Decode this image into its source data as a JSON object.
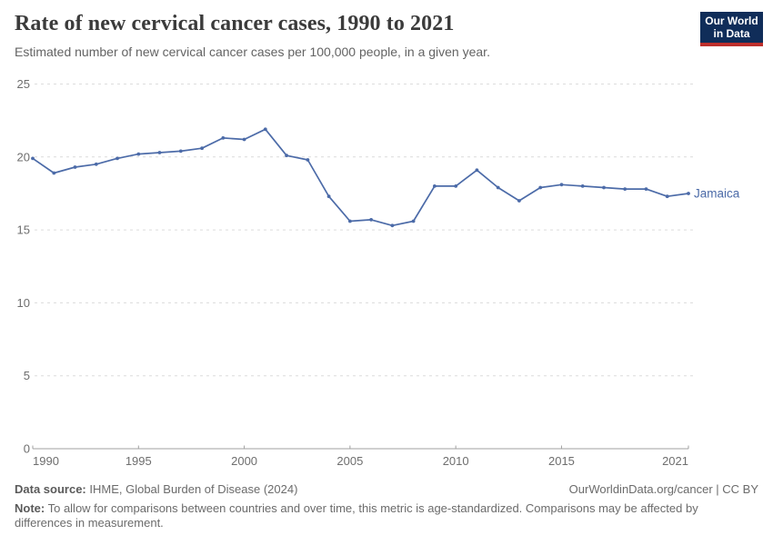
{
  "header": {
    "title": "Rate of new cervical cancer cases, 1990 to 2021",
    "subtitle": "Estimated number of new cervical cancer cases per 100,000 people, in a given year."
  },
  "logo": {
    "line1": "Our World",
    "line2": "in Data",
    "bg_color": "#102d59",
    "stripe_color": "#be2f2c"
  },
  "chart_data": {
    "type": "line",
    "title": "Rate of new cervical cancer cases, 1990 to 2021",
    "xlabel": "",
    "ylabel": "",
    "xlim": [
      1990,
      2021
    ],
    "ylim": [
      0,
      25
    ],
    "xticks": [
      1990,
      1995,
      2000,
      2005,
      2010,
      2015,
      2021
    ],
    "yticks": [
      0,
      5,
      10,
      15,
      20,
      25
    ],
    "grid": "horizontal dashed",
    "legend_position": "end-of-line label",
    "series": [
      {
        "name": "Jamaica",
        "color": "#4c6ba8",
        "x": [
          1990,
          1991,
          1992,
          1993,
          1994,
          1995,
          1996,
          1997,
          1998,
          1999,
          2000,
          2001,
          2002,
          2003,
          2004,
          2005,
          2006,
          2007,
          2008,
          2009,
          2010,
          2011,
          2012,
          2013,
          2014,
          2015,
          2016,
          2017,
          2018,
          2019,
          2020,
          2021
        ],
        "values": [
          19.9,
          18.9,
          19.3,
          19.5,
          19.9,
          20.2,
          20.3,
          20.4,
          20.6,
          21.3,
          21.2,
          21.9,
          20.1,
          19.8,
          17.3,
          15.6,
          15.7,
          15.3,
          15.6,
          18.0,
          18.0,
          19.1,
          17.9,
          17.0,
          17.9,
          18.1,
          18.0,
          17.9,
          17.8,
          17.8,
          17.3,
          17.5
        ]
      }
    ],
    "axis_color": "#a1a1a1",
    "grid_color": "#dcdcdc",
    "tick_label_color": "#6e6e6e"
  },
  "footer": {
    "source_label": "Data source:",
    "source_text": " IHME, Global Burden of Disease (2024)",
    "rights": "OurWorldinData.org/cancer | CC BY",
    "note_label": "Note:",
    "note_text": " To allow for comparisons between countries and over time, this metric is age-standardized. Comparisons may be affected by differences in measurement."
  }
}
